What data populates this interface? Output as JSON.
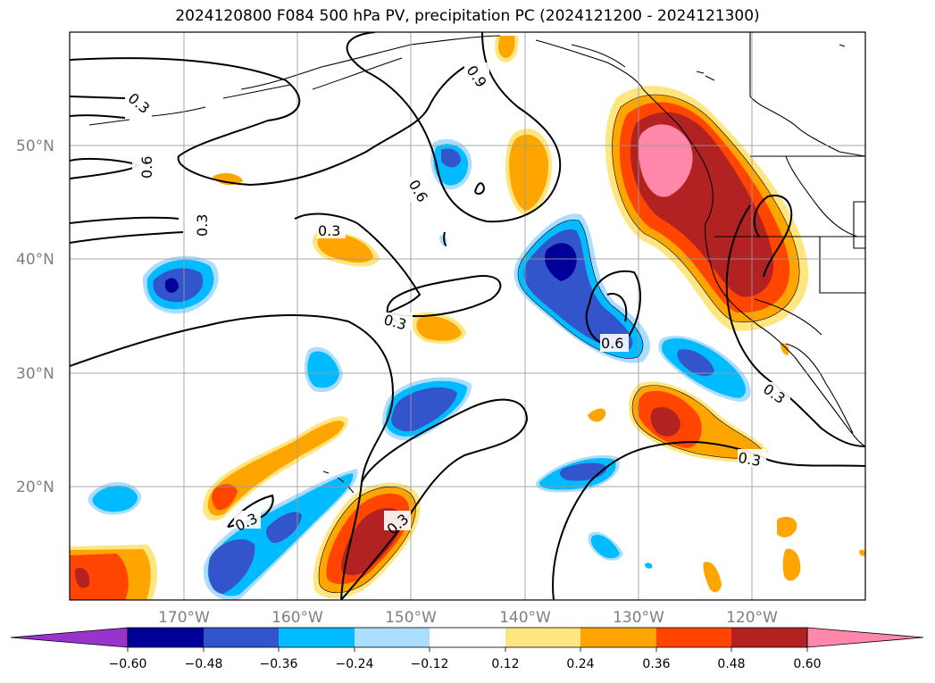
{
  "title": "2024120800 F084 500 hPa PV, precipitation PC (2024121200 - 2024121300)",
  "lon_labels": [
    "170°W",
    "160°W",
    "150°W",
    "140°W",
    "130°W",
    "120°W"
  ],
  "lat_labels": [
    "50°N",
    "40°N",
    "30°N",
    "20°N"
  ],
  "contour_labels": [
    "0.3",
    "0.6",
    "0.9",
    "0.6",
    "0.3",
    "0.3",
    "0.6",
    "0.3",
    "0.3",
    "0.3",
    "0.3",
    "0.3"
  ],
  "colorbar": {
    "ticks": [
      "−0.60",
      "−0.48",
      "−0.36",
      "−0.24",
      "−0.12",
      "0.12",
      "0.24",
      "0.36",
      "0.48",
      "0.60"
    ],
    "colors": [
      "#9933cc",
      "#000099",
      "#3355cc",
      "#00bbff",
      "#aaddff",
      "#ffffff",
      "#ffe680",
      "#ffa500",
      "#ff4500",
      "#b22222",
      "#ff88aa"
    ]
  },
  "colors": {
    "pos_light": "#ffe680",
    "pos_orange": "#ffa500",
    "pos_redorange": "#ff4500",
    "pos_darkred": "#b22222",
    "pos_pink": "#ff88aa",
    "neg_light": "#aaddff",
    "neg_cyan": "#00bbff",
    "neg_blue": "#3355cc",
    "neg_navy": "#000099"
  }
}
